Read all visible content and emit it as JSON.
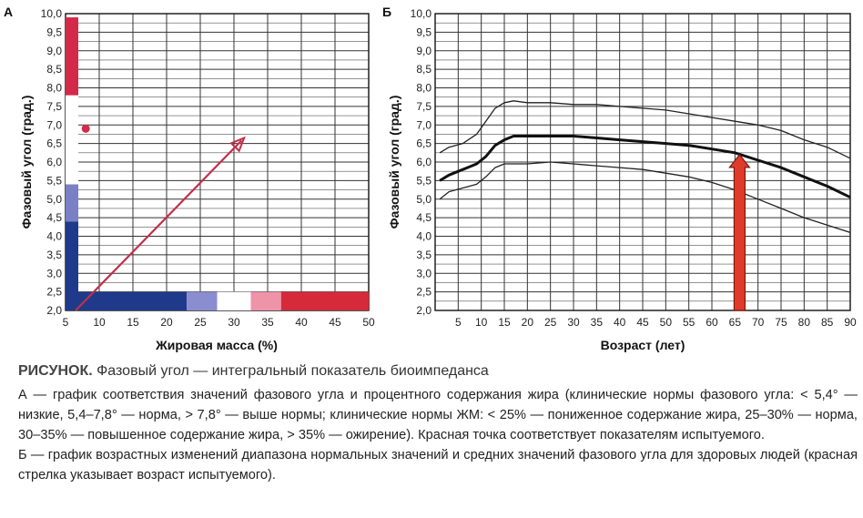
{
  "chart_data": [
    {
      "type": "scatter",
      "panel_label": "А",
      "xlabel": "Жировая масса (%)",
      "ylabel": "Фазовый угол (град.)",
      "xlim": [
        5,
        50
      ],
      "ylim": [
        2.0,
        10.0
      ],
      "x_ticks": [
        "5",
        "10",
        "15",
        "20",
        "25",
        "30",
        "35",
        "40",
        "45",
        "50"
      ],
      "y_ticks": [
        "2,0",
        "2,5",
        "3,0",
        "3,5",
        "4,0",
        "4,5",
        "5,0",
        "5,5",
        "6,0",
        "6,5",
        "7,0",
        "7,5",
        "8,0",
        "8,5",
        "9,0",
        "9,5",
        "10,0"
      ],
      "grid": true,
      "phase_angle_bands": [
        {
          "from": 2.0,
          "to": 4.4,
          "color": "#1f3a8a"
        },
        {
          "from": 4.4,
          "to": 5.4,
          "color": "#7a80c4"
        },
        {
          "from": 5.4,
          "to": 7.8,
          "color": "#ffffff"
        },
        {
          "from": 7.8,
          "to": 9.9,
          "color": "#d42a4a"
        }
      ],
      "fat_mass_bands": [
        {
          "from": 5,
          "to": 23,
          "color": "#1f3a8a"
        },
        {
          "from": 23,
          "to": 27.5,
          "color": "#8a8ed0"
        },
        {
          "from": 27.5,
          "to": 32.5,
          "color": "#ffffff"
        },
        {
          "from": 32.5,
          "to": 37,
          "color": "#ee93a8"
        },
        {
          "from": 37,
          "to": 50,
          "color": "#d42a3a"
        }
      ],
      "point": {
        "x": 8,
        "y": 6.9,
        "color": "#d42a4a"
      },
      "arrow": {
        "from": [
          6.5,
          2.0
        ],
        "to": [
          31.5,
          6.65
        ],
        "color": "#c0304a"
      }
    },
    {
      "type": "line",
      "panel_label": "Б",
      "xlabel": "Возраст (лет)",
      "ylabel": "Фазовый угол (град.)",
      "xlim": [
        0,
        90
      ],
      "ylim": [
        2.0,
        10.0
      ],
      "x_ticks": [
        "5",
        "10",
        "15",
        "20",
        "25",
        "30",
        "35",
        "40",
        "45",
        "50",
        "55",
        "60",
        "65",
        "70",
        "75",
        "80",
        "85",
        "90"
      ],
      "y_ticks": [
        "2,0",
        "2,5",
        "3,0",
        "3,5",
        "4,0",
        "4,5",
        "5,0",
        "5,5",
        "6,0",
        "6,5",
        "7,0",
        "7,5",
        "8,0",
        "8,5",
        "9,0",
        "9,5",
        "10,0"
      ],
      "grid": true,
      "series": [
        {
          "x": [
            1,
            3,
            6,
            9,
            11,
            13,
            15,
            17,
            20,
            25,
            30,
            35,
            40,
            45,
            50,
            55,
            60,
            65,
            70,
            75,
            80,
            85,
            90
          ],
          "y": [
            6.25,
            6.4,
            6.5,
            6.75,
            7.1,
            7.45,
            7.6,
            7.65,
            7.6,
            7.6,
            7.55,
            7.55,
            7.5,
            7.45,
            7.4,
            7.3,
            7.2,
            7.1,
            7.0,
            6.85,
            6.6,
            6.4,
            6.1
          ]
        },
        {
          "x": [
            1,
            3,
            6,
            9,
            11,
            13,
            15,
            17,
            20,
            25,
            30,
            35,
            40,
            45,
            50,
            55,
            60,
            65,
            70,
            75,
            80,
            85,
            90
          ],
          "y": [
            5.5,
            5.65,
            5.8,
            5.95,
            6.15,
            6.45,
            6.6,
            6.7,
            6.7,
            6.7,
            6.7,
            6.65,
            6.6,
            6.55,
            6.5,
            6.45,
            6.35,
            6.25,
            6.05,
            5.85,
            5.6,
            5.35,
            5.05
          ]
        },
        {
          "x": [
            1,
            3,
            6,
            9,
            11,
            13,
            15,
            17,
            20,
            25,
            30,
            35,
            40,
            45,
            50,
            55,
            60,
            65,
            70,
            75,
            80,
            85,
            90
          ],
          "y": [
            5.0,
            5.2,
            5.3,
            5.4,
            5.6,
            5.85,
            5.95,
            5.95,
            5.95,
            6.0,
            5.95,
            5.9,
            5.85,
            5.8,
            5.7,
            5.6,
            5.45,
            5.25,
            5.0,
            4.75,
            4.5,
            4.3,
            4.1
          ]
        }
      ],
      "series_colors": [
        "#222222",
        "#111111",
        "#222222"
      ],
      "arrow": {
        "x": 66,
        "from": 2.0,
        "to": 6.2,
        "color": "#e03a2a"
      }
    }
  ],
  "caption": {
    "title_label": "РИСУНОК.",
    "title_text": "Фазовый угол — интегральный показатель биоимпеданса",
    "para_a": "А — график соответствия значений фазового угла и процентного содержания жира (клинические нормы фазового угла: < 5,4° — низкие, 5,4–7,8° — норма, > 7,8° — выше нормы; клинические нормы ЖМ: < 25% — пониженное содержание жира, 25–30% — норма, 30–35% — повышенное содержание жира, > 35% — ожирение). Красная точка соответствует показателям испытуемого.",
    "para_b": "Б — график возрастных изменений диапазона нормальных значений и средних значений фазового угла для здоровых людей (красная стрелка указывает возраст испытуемого)."
  }
}
